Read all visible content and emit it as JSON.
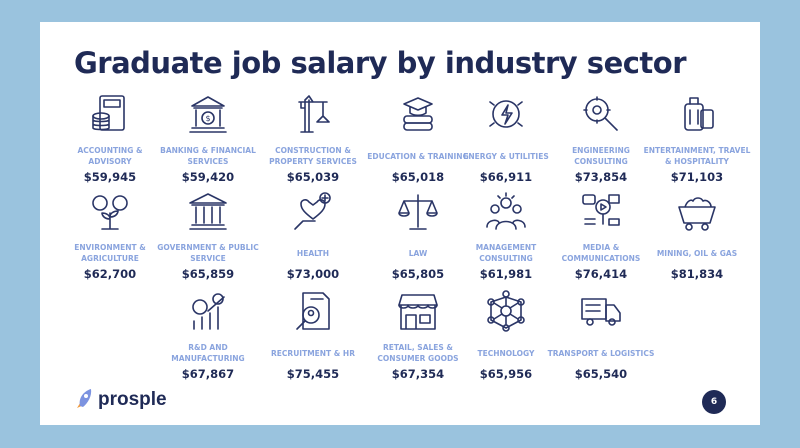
{
  "title": "Graduate job salary by industry sector",
  "colors": {
    "background": "#9ac3de",
    "navy": "#1f2a56",
    "label": "#8aa4de"
  },
  "sectors": [
    {
      "label": "ACCOUNTING & ADVISORY",
      "salary": "$59,945",
      "icon": "calculator-coins-icon"
    },
    {
      "label": "BANKING & FINANCIAL SERVICES",
      "salary": "$59,420",
      "icon": "bank-icon"
    },
    {
      "label": "CONSTRUCTION & PROPERTY SERVICES",
      "salary": "$65,039",
      "icon": "crane-icon"
    },
    {
      "label": "EDUCATION & TRAINING",
      "salary": "$65,018",
      "icon": "books-graduation-icon"
    },
    {
      "label": "ENERGY & UTILITIES",
      "salary": "$66,911",
      "icon": "energy-icon"
    },
    {
      "label": "ENGINEERING CONSULTING",
      "salary": "$73,854",
      "icon": "gear-magnifier-icon"
    },
    {
      "label": "ENTERTAINMENT, TRAVEL & HOSPITALITY",
      "salary": "$71,103",
      "icon": "luggage-icon"
    },
    {
      "label": "ENVIRONMENT & AGRICULTURE",
      "salary": "$62,700",
      "icon": "plant-gears-icon"
    },
    {
      "label": "GOVERNMENT & PUBLIC SERVICE",
      "salary": "$65,859",
      "icon": "government-building-icon"
    },
    {
      "label": "HEALTH",
      "salary": "$73,000",
      "icon": "hand-heart-icon"
    },
    {
      "label": "LAW",
      "salary": "$65,805",
      "icon": "scales-icon"
    },
    {
      "label": "MANAGEMENT CONSULTING",
      "salary": "$61,981",
      "icon": "team-icon"
    },
    {
      "label": "MEDIA & COMMUNICATIONS",
      "salary": "$76,414",
      "icon": "media-icon"
    },
    {
      "label": "MINING, OIL & GAS",
      "salary": "$81,834",
      "icon": "mine-cart-icon"
    },
    {
      "label": "R&D AND MANUFACTURING",
      "salary": "$67,867",
      "icon": "research-chart-icon"
    },
    {
      "label": "RECRUITMENT & HR",
      "salary": "$75,455",
      "icon": "resume-search-icon"
    },
    {
      "label": "RETAIL, SALES & CONSUMER GOODS",
      "salary": "$67,354",
      "icon": "storefront-icon"
    },
    {
      "label": "TECHNOLOGY",
      "salary": "$65,956",
      "icon": "network-icon"
    },
    {
      "label": "TRANSPORT & LOGISTICS",
      "salary": "$65,540",
      "icon": "truck-icon"
    }
  ],
  "footer": {
    "brand": "prosple",
    "page_number": "6"
  }
}
